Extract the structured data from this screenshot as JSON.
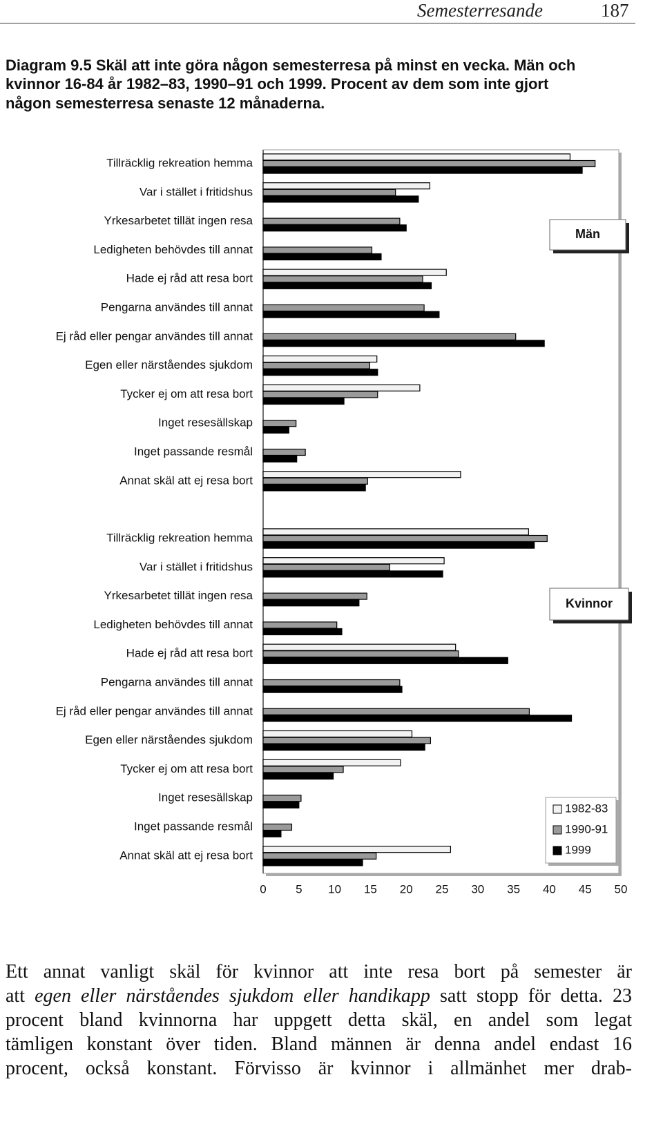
{
  "header": {
    "title": "Semesterresande",
    "page": "187"
  },
  "caption": {
    "lines": [
      "Diagram 9.5 Skäl att inte göra någon semesterresa på minst en vecka. Män och",
      "kvinnor 16-84 år 1982–83, 1990–91 och 1999. Procent av dem som inte gjort",
      "någon semesterresa senaste 12 månaderna."
    ]
  },
  "chart_data": [
    {
      "type": "bar",
      "orientation": "horizontal",
      "label": "Män",
      "categories": [
        "Tillräcklig rekreation hemma",
        "Var i stället i fritidshus",
        "Yrkesarbetet tillät ingen resa",
        "Ledigheten behövdes till annat",
        "Hade ej råd att resa bort",
        "Pengarna användes till annat",
        "Ej råd eller pengar användes till annat",
        "Egen eller närståendes sjukdom",
        "Tycker ej om att resa bort",
        "Inget resesällskap",
        "Inget passande resmål",
        "Annat skäl att ej resa bort"
      ],
      "series": [
        {
          "name": "1982-83",
          "color": "#f2f2f2",
          "values": [
            42.9,
            23.3,
            null,
            null,
            25.6,
            null,
            null,
            15.9,
            21.9,
            null,
            null,
            27.6
          ]
        },
        {
          "name": "1990-91",
          "color": "#9a9a9a",
          "values": [
            46.4,
            18.5,
            19.1,
            15.2,
            22.3,
            22.5,
            35.3,
            14.9,
            16.0,
            4.6,
            5.9,
            14.6
          ]
        },
        {
          "name": "1999",
          "color": "#000000",
          "values": [
            44.6,
            21.7,
            20.0,
            16.5,
            23.5,
            24.6,
            39.3,
            16.0,
            11.3,
            3.6,
            4.7,
            14.3
          ]
        }
      ],
      "xlim": [
        0,
        50
      ]
    },
    {
      "type": "bar",
      "orientation": "horizontal",
      "label": "Kvinnor",
      "categories": [
        "Tillräcklig rekreation hemma",
        "Var i stället i fritidshus",
        "Yrkesarbetet tillät ingen resa",
        "Ledigheten behövdes till annat",
        "Hade ej råd att resa bort",
        "Pengarna användes till annat",
        "Ej råd eller pengar användes till annat",
        "Egen eller närståendes sjukdom",
        "Tycker ej om att resa bort",
        "Inget resesällskap",
        "Inget passande resmål",
        "Annat skäl att ej resa bort"
      ],
      "series": [
        {
          "name": "1982-83",
          "color": "#f2f2f2",
          "values": [
            37.1,
            25.3,
            null,
            null,
            26.9,
            null,
            null,
            20.8,
            19.2,
            null,
            null,
            26.2
          ]
        },
        {
          "name": "1990-91",
          "color": "#9a9a9a",
          "values": [
            39.7,
            17.7,
            14.5,
            10.3,
            27.3,
            19.1,
            37.2,
            23.4,
            11.2,
            5.3,
            4.0,
            15.8
          ]
        },
        {
          "name": "1999",
          "color": "#000000",
          "values": [
            37.9,
            25.1,
            13.4,
            11.0,
            34.2,
            19.4,
            43.1,
            22.6,
            9.8,
            5.0,
            2.5,
            13.9
          ]
        }
      ],
      "xlim": [
        0,
        50
      ],
      "xticks": [
        0,
        5,
        10,
        15,
        20,
        25,
        30,
        35,
        40,
        45,
        50
      ],
      "legend": "bottom-right"
    }
  ],
  "body": {
    "lines": [
      [
        "Ett annat vanligt skäl för kvinnor att inte resa bort på semester är"
      ],
      [
        "att ",
        "egen eller närståendes sjukdom eller handikapp",
        " satt stopp för detta. 23"
      ],
      [
        "procent bland kvinnorna har uppgett detta skäl, en andel som legat"
      ],
      [
        "tämligen konstant över tiden. Bland männen är denna andel endast 16"
      ],
      [
        "procent, också konstant. Förvisso är kvinnor i allmänhet mer drab-"
      ]
    ]
  }
}
